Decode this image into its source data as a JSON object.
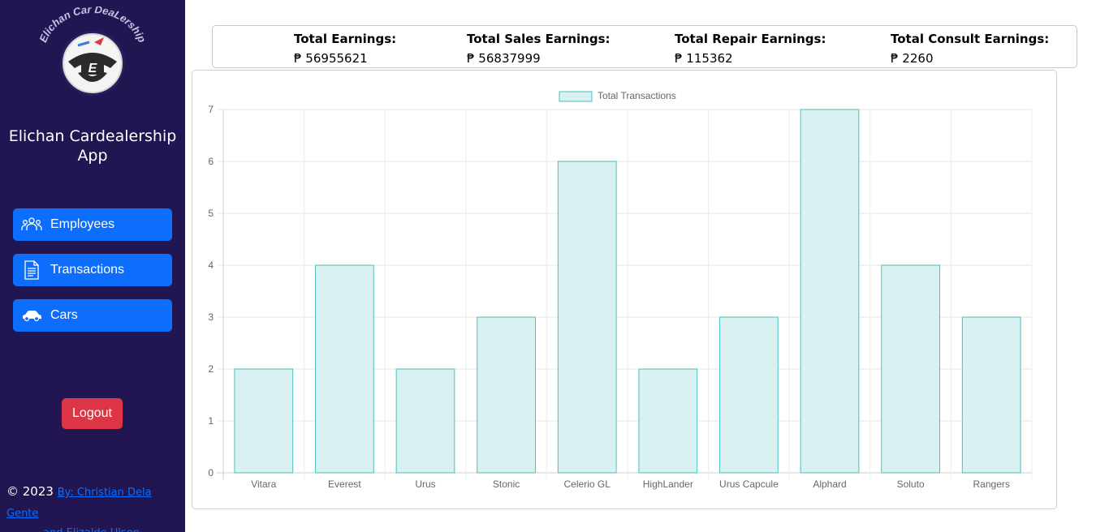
{
  "sidebar": {
    "logo_text": "Elichan Car DeaLership",
    "app_title": "Elichan Cardealership App",
    "nav": [
      {
        "label": "Employees",
        "icon": "people-icon"
      },
      {
        "label": "Transactions",
        "icon": "document-icon"
      },
      {
        "label": "Cars",
        "icon": "car-icon"
      }
    ],
    "logout_label": "Logout",
    "footer": {
      "copyright": "© 2023",
      "credit_line1": "By: Christian Dela Gente",
      "credit_line2": "and Elizalde Ulson"
    }
  },
  "earnings": [
    {
      "label": "Total Earnings:",
      "value": "₱ 56955621"
    },
    {
      "label": "Total Sales Earnings:",
      "value": "₱ 56837999"
    },
    {
      "label": "Total Repair Earnings:",
      "value": "₱ 115362"
    },
    {
      "label": "Total Consult Earnings:",
      "value": "₱ 2260"
    }
  ],
  "colors": {
    "sidebar_bg": "#211651",
    "nav_button": "#0d6efd",
    "logout_button": "#dc3545",
    "bar_fill": "#daf1f1",
    "bar_border": "#4bc0c0"
  },
  "chart_data": {
    "type": "bar",
    "categories": [
      "Vitara",
      "Everest",
      "Urus",
      "Stonic",
      "Celerio GL",
      "HighLander",
      "Urus Capcule",
      "Alphard",
      "Soluto",
      "Rangers"
    ],
    "series": [
      {
        "name": "Total Transactions",
        "values": [
          2,
          4,
          2,
          3,
          6,
          2,
          3,
          7,
          4,
          3
        ]
      }
    ],
    "title": "",
    "xlabel": "",
    "ylabel": "",
    "ylim": [
      0,
      7
    ],
    "yticks": [
      0,
      1,
      2,
      3,
      4,
      5,
      6,
      7
    ],
    "grid": true,
    "legend": "top-center"
  }
}
